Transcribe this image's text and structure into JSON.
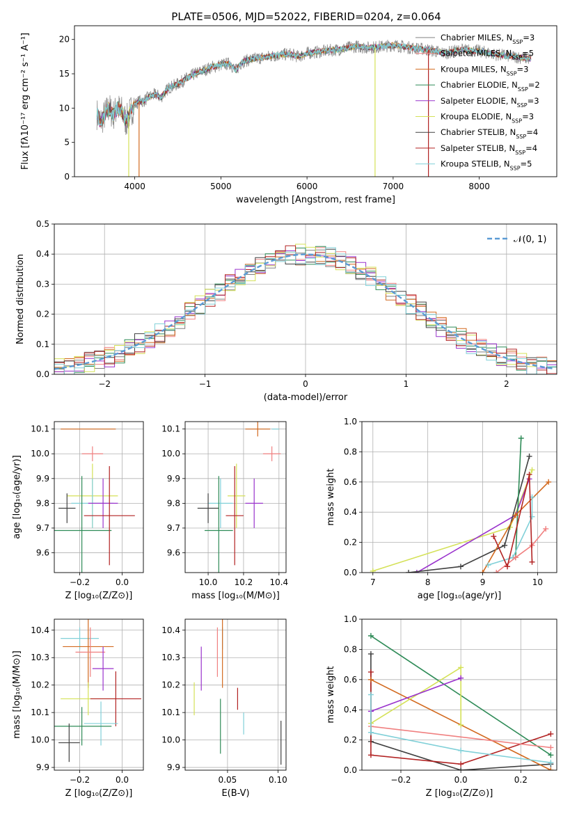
{
  "figure_title": "PLATE=0506, MJD=52022, FIBERID=0204, z=0.064",
  "colors": {
    "Chabrier MILES": "#808080",
    "Salpeter MILES": "#f08080",
    "Kroupa MILES": "#d2691e",
    "Chabrier ELODIE": "#2e8b57",
    "Salpeter ELODIE": "#9932cc",
    "Kroupa ELODIE": "#d4e157",
    "Chabrier STELIB": "#404040",
    "Salpeter STELIB": "#b22222",
    "Kroupa STELIB": "#80d0d8",
    "model_line": "#5b9bd5",
    "normal_line": "#5b9bd5"
  },
  "chart_data": [
    {
      "id": "spectrum",
      "type": "line",
      "title": "PLATE=0506, MJD=52022, FIBERID=0204, z=0.064",
      "xlabel": "wavelength [Angstrom, rest frame]",
      "ylabel": "Flux [fλ10⁻¹⁷ erg cm⁻² s⁻¹ A⁻¹]",
      "xlim": [
        3300,
        8900
      ],
      "ylim": [
        0,
        22
      ],
      "xticks": [
        4000,
        5000,
        6000,
        7000,
        8000
      ],
      "yticks": [
        0,
        5,
        10,
        15,
        20
      ],
      "grid": false,
      "legend_position": "top-right",
      "legend": [
        {
          "name": "Chabrier MILES, N",
          "sub": "SSP",
          "tail": "=3"
        },
        {
          "name": "Salpeter MILES, N",
          "sub": "SSP",
          "tail": "=5"
        },
        {
          "name": "Kroupa MILES, N",
          "sub": "SSP",
          "tail": "=3"
        },
        {
          "name": "Chabrier ELODIE, N",
          "sub": "SSP",
          "tail": "=2"
        },
        {
          "name": "Salpeter ELODIE, N",
          "sub": "SSP",
          "tail": "=3"
        },
        {
          "name": "Kroupa ELODIE, N",
          "sub": "SSP",
          "tail": "=3"
        },
        {
          "name": "Chabrier STELIB, N",
          "sub": "SSP",
          "tail": "=4"
        },
        {
          "name": "Salpeter STELIB, N",
          "sub": "SSP",
          "tail": "=4"
        },
        {
          "name": "Kroupa STELIB, N",
          "sub": "SSP",
          "tail": "=5"
        }
      ],
      "spectrum_points": [
        [
          3550,
          9.5
        ],
        [
          3600,
          8.0
        ],
        [
          3650,
          9.0
        ],
        [
          3700,
          10.0
        ],
        [
          3750,
          9.0
        ],
        [
          3800,
          10.0
        ],
        [
          3850,
          9.5
        ],
        [
          3900,
          8.0
        ],
        [
          3950,
          9.5
        ],
        [
          4000,
          10.5
        ],
        [
          4050,
          11.0
        ],
        [
          4100,
          11.0
        ],
        [
          4150,
          11.5
        ],
        [
          4200,
          11.8
        ],
        [
          4250,
          12.0
        ],
        [
          4300,
          11.5
        ],
        [
          4350,
          12.3
        ],
        [
          4400,
          13.0
        ],
        [
          4500,
          13.5
        ],
        [
          4600,
          14.3
        ],
        [
          4700,
          15.0
        ],
        [
          4800,
          15.5
        ],
        [
          4900,
          16.0
        ],
        [
          5000,
          16.3
        ],
        [
          5100,
          16.5
        ],
        [
          5175,
          15.5
        ],
        [
          5250,
          16.8
        ],
        [
          5400,
          17.2
        ],
        [
          5600,
          17.6
        ],
        [
          5800,
          17.9
        ],
        [
          5900,
          17.5
        ],
        [
          6000,
          18.0
        ],
        [
          6200,
          18.3
        ],
        [
          6400,
          18.6
        ],
        [
          6563,
          19.0
        ],
        [
          6700,
          18.8
        ],
        [
          6900,
          19.0
        ],
        [
          7000,
          19.2
        ],
        [
          7200,
          18.8
        ],
        [
          7400,
          18.5
        ],
        [
          7600,
          18.0
        ],
        [
          7800,
          18.5
        ],
        [
          8000,
          18.3
        ],
        [
          8200,
          17.8
        ],
        [
          8400,
          17.5
        ],
        [
          8600,
          17.2
        ]
      ],
      "dropouts": [
        {
          "series": "Kroupa ELODIE",
          "x": 3930
        },
        {
          "series": "Kroupa MILES",
          "x": 4050
        },
        {
          "series": "Kroupa ELODIE",
          "x": 6790
        },
        {
          "series": "Salpeter STELIB",
          "x": 7410
        }
      ]
    },
    {
      "id": "residuals",
      "type": "histogram",
      "xlabel": "(data-model)/error",
      "ylabel": "Normed distribution",
      "xlim": [
        -2.5,
        2.5
      ],
      "ylim": [
        0,
        0.5
      ],
      "xticks": [
        -2,
        -1,
        0,
        1,
        2
      ],
      "yticks": [
        0.0,
        0.1,
        0.2,
        0.3,
        0.4,
        0.5
      ],
      "grid": true,
      "legend_position": "top-right",
      "legend": [
        {
          "name": "𝒩(0, 1)"
        }
      ],
      "bin_width": 0.1
    },
    {
      "id": "age_vs_Z",
      "type": "errorbar",
      "xlabel": "Z [log₁₀(Z/Z⊙)]",
      "ylabel": "age  [log₁₀(age/yr)]",
      "xlim": [
        -0.32,
        0.1
      ],
      "ylim": [
        9.52,
        10.13
      ],
      "xticks": [
        -0.2,
        0.0
      ],
      "yticks": [
        9.6,
        9.7,
        9.8,
        9.9,
        10.0,
        10.1
      ],
      "grid": true,
      "points": [
        {
          "series": "Kroupa MILES",
          "x": -0.16,
          "y": 10.1,
          "xerr": 0.13,
          "yerr": 0.0
        },
        {
          "series": "Salpeter MILES",
          "x": -0.14,
          "y": 10.0,
          "xerr": 0.05,
          "yerr": 0.03
        },
        {
          "series": "Kroupa ELODIE",
          "x": -0.14,
          "y": 9.83,
          "xerr": 0.12,
          "yerr": 0.13
        },
        {
          "series": "Kroupa STELIB",
          "x": -0.14,
          "y": 9.8,
          "xerr": 0.1,
          "yerr": 0.1
        },
        {
          "series": "Salpeter ELODIE",
          "x": -0.09,
          "y": 9.8,
          "xerr": 0.07,
          "yerr": 0.1
        },
        {
          "series": "Chabrier STELIB",
          "x": -0.26,
          "y": 9.78,
          "xerr": 0.04,
          "yerr": 0.06
        },
        {
          "series": "Chabrier ELODIE",
          "x": -0.19,
          "y": 9.69,
          "xerr": 0.14,
          "yerr": 0.22
        },
        {
          "series": "Salpeter STELIB",
          "x": -0.06,
          "y": 9.75,
          "xerr": 0.12,
          "yerr": 0.2
        }
      ]
    },
    {
      "id": "age_vs_mass",
      "type": "errorbar",
      "xlabel": "mass [log₁₀(M/M⊙)]",
      "ylabel": "",
      "xlim": [
        9.87,
        10.44
      ],
      "ylim": [
        9.52,
        10.13
      ],
      "xticks": [
        10.0,
        10.2,
        10.4
      ],
      "yticks": [
        9.6,
        9.7,
        9.8,
        9.9,
        10.0,
        10.1
      ],
      "grid": true,
      "points": [
        {
          "series": "Kroupa MILES",
          "x": 10.28,
          "y": 10.1,
          "xerr": 0.07,
          "yerr": 0.03
        },
        {
          "series": "Kroupa STELIB",
          "x": 10.38,
          "y": 10.1,
          "xerr": 0.02,
          "yerr": 0.0
        },
        {
          "series": "Salpeter MILES",
          "x": 10.36,
          "y": 10.0,
          "xerr": 0.05,
          "yerr": 0.03
        },
        {
          "series": "Kroupa ELODIE",
          "x": 10.16,
          "y": 9.83,
          "xerr": 0.05,
          "yerr": 0.13
        },
        {
          "series": "Kroupa STELIB",
          "x": 10.07,
          "y": 9.8,
          "xerr": 0.07,
          "yerr": 0.1
        },
        {
          "series": "Salpeter ELODIE",
          "x": 10.26,
          "y": 9.8,
          "xerr": 0.05,
          "yerr": 0.1
        },
        {
          "series": "Chabrier STELIB",
          "x": 10.0,
          "y": 9.78,
          "xerr": 0.06,
          "yerr": 0.06
        },
        {
          "series": "Chabrier ELODIE",
          "x": 10.06,
          "y": 9.69,
          "xerr": 0.08,
          "yerr": 0.22
        },
        {
          "series": "Salpeter STELIB",
          "x": 10.15,
          "y": 9.75,
          "xerr": 0.05,
          "yerr": 0.2
        }
      ]
    },
    {
      "id": "weight_vs_age",
      "type": "line",
      "xlabel": "age  [log₁₀(age/yr)]",
      "ylabel": "mass weight",
      "xlim": [
        6.8,
        10.35
      ],
      "ylim": [
        0,
        1
      ],
      "xticks": [
        7,
        8,
        9,
        10
      ],
      "yticks": [
        0.0,
        0.2,
        0.4,
        0.6,
        0.8,
        1.0
      ],
      "grid": true,
      "series": [
        {
          "series": "Kroupa ELODIE",
          "x": [
            7.0,
            9.5,
            9.9
          ],
          "y": [
            0.01,
            0.3,
            0.68
          ]
        },
        {
          "series": "Salpeter ELODIE",
          "x": [
            7.8,
            9.6,
            9.85
          ],
          "y": [
            0.0,
            0.38,
            0.62
          ]
        },
        {
          "series": "Chabrier STELIB",
          "x": [
            7.65,
            8.6,
            9.4,
            9.85
          ],
          "y": [
            0.0,
            0.04,
            0.18,
            0.77
          ]
        },
        {
          "series": "Chabrier ELODIE",
          "x": [
            9.6,
            9.7
          ],
          "y": [
            0.1,
            0.89
          ]
        },
        {
          "series": "Kroupa MILES",
          "x": [
            9.0,
            9.6,
            10.2
          ],
          "y": [
            0.0,
            0.38,
            0.6
          ]
        },
        {
          "series": "Kroupa STELIB",
          "x": [
            9.1,
            9.55,
            9.9,
            9.9
          ],
          "y": [
            0.05,
            0.1,
            0.37,
            0.5
          ]
        },
        {
          "series": "Salpeter MILES",
          "x": [
            9.25,
            9.6,
            9.9,
            10.15
          ],
          "y": [
            0.0,
            0.1,
            0.18,
            0.29
          ]
        },
        {
          "series": "Salpeter STELIB",
          "x": [
            9.2,
            9.45,
            9.85,
            9.9
          ],
          "y": [
            0.24,
            0.04,
            0.65,
            0.07
          ]
        }
      ]
    },
    {
      "id": "mass_vs_Z",
      "type": "errorbar",
      "xlabel": "Z [log₁₀(Z/Z⊙)]",
      "ylabel": "mass [log₁₀(M/M⊙)]",
      "xlim": [
        -0.32,
        0.1
      ],
      "ylim": [
        9.89,
        10.44
      ],
      "xticks": [
        -0.2,
        0.0
      ],
      "yticks": [
        9.9,
        10.0,
        10.1,
        10.2,
        10.3,
        10.4
      ],
      "grid": true,
      "points": [
        {
          "series": "Kroupa STELIB",
          "x": -0.2,
          "y": 10.37,
          "xerr": 0.09,
          "yerr": 0.04
        },
        {
          "series": "Kroupa MILES",
          "x": -0.16,
          "y": 10.34,
          "xerr": 0.12,
          "yerr": 0.15
        },
        {
          "series": "Salpeter MILES",
          "x": -0.15,
          "y": 10.32,
          "xerr": 0.07,
          "yerr": 0.09
        },
        {
          "series": "Salpeter ELODIE",
          "x": -0.09,
          "y": 10.26,
          "xerr": 0.05,
          "yerr": 0.08
        },
        {
          "series": "Kroupa ELODIE",
          "x": -0.16,
          "y": 10.15,
          "xerr": 0.13,
          "yerr": 0.06
        },
        {
          "series": "Salpeter STELIB",
          "x": -0.03,
          "y": 10.15,
          "xerr": 0.12,
          "yerr": 0.1
        },
        {
          "series": "Kroupa STELIB",
          "x": -0.1,
          "y": 10.06,
          "xerr": 0.08,
          "yerr": 0.08
        },
        {
          "series": "Chabrier ELODIE",
          "x": -0.19,
          "y": 10.05,
          "xerr": 0.14,
          "yerr": 0.07
        },
        {
          "series": "Chabrier STELIB",
          "x": -0.25,
          "y": 9.99,
          "xerr": 0.05,
          "yerr": 0.07
        }
      ]
    },
    {
      "id": "mass_vs_ebv",
      "type": "errorbar",
      "xlabel": "E(B-V)",
      "ylabel": "",
      "xlim": [
        0.008,
        0.108
      ],
      "ylim": [
        9.89,
        10.44
      ],
      "xticks": [
        0.05,
        0.1
      ],
      "yticks": [
        9.9,
        10.0,
        10.1,
        10.2,
        10.3,
        10.4
      ],
      "grid": true,
      "points": [
        {
          "series": "Kroupa STELIB",
          "x": 0.045,
          "y": 10.37,
          "yerr": 0.04
        },
        {
          "series": "Kroupa MILES",
          "x": 0.045,
          "y": 10.34,
          "yerr": 0.15
        },
        {
          "series": "Salpeter MILES",
          "x": 0.04,
          "y": 10.32,
          "yerr": 0.09
        },
        {
          "series": "Salpeter ELODIE",
          "x": 0.024,
          "y": 10.26,
          "yerr": 0.08
        },
        {
          "series": "Kroupa ELODIE",
          "x": 0.017,
          "y": 10.15,
          "yerr": 0.06
        },
        {
          "series": "Salpeter STELIB",
          "x": 0.06,
          "y": 10.15,
          "yerr": 0.04
        },
        {
          "series": "Kroupa STELIB",
          "x": 0.066,
          "y": 10.06,
          "yerr": 0.04
        },
        {
          "series": "Chabrier ELODIE",
          "x": 0.043,
          "y": 10.05,
          "yerr": 0.1
        },
        {
          "series": "Chabrier STELIB",
          "x": 0.103,
          "y": 9.99,
          "yerr": 0.08
        }
      ]
    },
    {
      "id": "weight_vs_Z",
      "type": "line",
      "xlabel": "Z [log₁₀(Z/Z⊙)]",
      "ylabel": "mass weight",
      "xlim": [
        -0.33,
        0.32
      ],
      "ylim": [
        0,
        1
      ],
      "xticks": [
        -0.2,
        0.0,
        0.2
      ],
      "yticks": [
        0.0,
        0.2,
        0.4,
        0.6,
        0.8,
        1.0
      ],
      "grid": true,
      "series": [
        {
          "series": "Chabrier ELODIE",
          "x": [
            -0.3,
            0.3
          ],
          "y": [
            0.89,
            0.1
          ]
        },
        {
          "series": "Chabrier STELIB",
          "x": [
            -0.3,
            -0.3,
            0.0,
            0.3
          ],
          "y": [
            0.77,
            0.19,
            0.0,
            0.04
          ]
        },
        {
          "series": "Salpeter STELIB",
          "x": [
            -0.3,
            -0.3,
            0.0,
            0.3
          ],
          "y": [
            0.65,
            0.1,
            0.04,
            0.24
          ]
        },
        {
          "series": "Kroupa MILES",
          "x": [
            -0.3,
            0.3
          ],
          "y": [
            0.6,
            0.0
          ]
        },
        {
          "series": "Kroupa ELODIE",
          "x": [
            -0.3,
            0.0,
            0.0
          ],
          "y": [
            0.31,
            0.68,
            0.3
          ]
        },
        {
          "series": "Salpeter ELODIE",
          "x": [
            -0.3,
            0.0
          ],
          "y": [
            0.39,
            0.61
          ]
        },
        {
          "series": "Salpeter MILES",
          "x": [
            -0.3,
            0.3
          ],
          "y": [
            0.29,
            0.15
          ]
        },
        {
          "series": "Kroupa STELIB",
          "x": [
            -0.3,
            -0.3,
            0.0,
            0.3
          ],
          "y": [
            0.5,
            0.25,
            0.13,
            0.05
          ]
        }
      ]
    }
  ]
}
